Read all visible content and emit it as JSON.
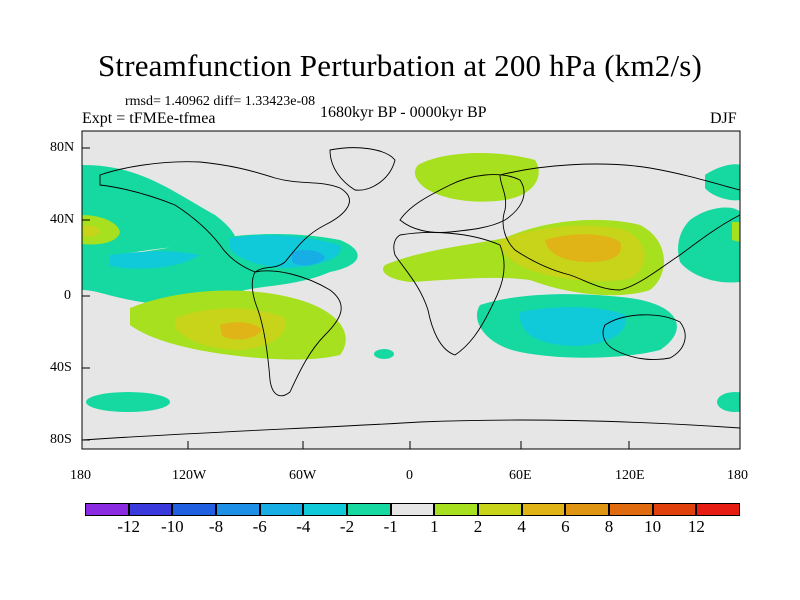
{
  "title": "Streamfunction Perturbation at 200 hPa (km2/s)",
  "stats": "rmsd= 1.40962 diff= 1.33423e-08",
  "experiment": "Expt = tFMEe-tfmea",
  "period": "1680kyr BP - 0000kyr BP",
  "season": "DJF",
  "lat_ticks": [
    "80N",
    "40N",
    "0",
    "40S",
    "80S"
  ],
  "lon_ticks": [
    "180",
    "120W",
    "60W",
    "0",
    "60E",
    "120E",
    "180"
  ],
  "colorbar": {
    "labels": [
      "-12",
      "-10",
      "-8",
      "-6",
      "-4",
      "-2",
      "-1",
      "1",
      "2",
      "4",
      "6",
      "8",
      "10",
      "12"
    ],
    "colors": [
      "#8a2be2",
      "#3a3adc",
      "#1f5fe0",
      "#1e8fe6",
      "#17aee6",
      "#10c9d9",
      "#15d9a0",
      "#e6e6e6",
      "#a6e01e",
      "#c7d419",
      "#e0b417",
      "#e09512",
      "#e06a0e",
      "#e0410c",
      "#e61c12"
    ]
  },
  "colors": {
    "land_outline": "#000000",
    "background": "#e6e6e6"
  }
}
